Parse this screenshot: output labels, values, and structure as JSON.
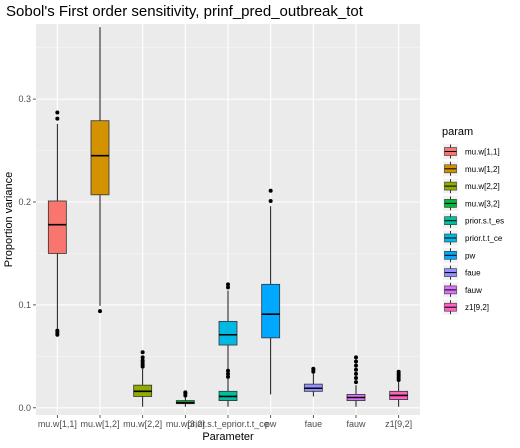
{
  "chart_data": {
    "type": "boxplot",
    "title": "Sobol's First order sensitivity,  prinf_pred_outbreak_tot",
    "xlabel": "Parameter",
    "ylabel": "Proportion variance",
    "ylim": [
      -0.007,
      0.373
    ],
    "yticks": [
      0.0,
      0.1,
      0.2,
      0.3
    ],
    "ytick_labels": [
      "0.0",
      "0.1",
      "0.2",
      "0.3"
    ],
    "grid": true,
    "legend_title": "param",
    "legend_position": "right",
    "categories": [
      "mu.w[1,1]",
      "mu.w[1,2]",
      "mu.w[2,2]",
      "mu.w[3,2]",
      "prior.s.t_eprior.t.t_ce",
      "pw",
      "faue",
      "fauw",
      "z1[9,2]"
    ],
    "series": [
      {
        "name": "mu.w[1,1]",
        "x_label": "mu.w[1,1]",
        "x_index": 0,
        "color": "#F8766D",
        "whisker_low": 0.077,
        "q1": 0.15,
        "median": 0.178,
        "q3": 0.201,
        "whisker_high": 0.276,
        "outliers": [
          0.071,
          0.073,
          0.075,
          0.281,
          0.287
        ]
      },
      {
        "name": "mu.w[1,2]",
        "x_label": "mu.w[1,2]",
        "x_index": 1,
        "color": "#D39200",
        "whisker_low": 0.099,
        "q1": 0.207,
        "median": 0.245,
        "q3": 0.279,
        "whisker_high": 0.37,
        "outliers": [
          0.094
        ]
      },
      {
        "name": "mu.w[2,2]",
        "x_label": "mu.w[2,2]",
        "x_index": 2,
        "color": "#93AA00",
        "whisker_low": 0.001,
        "q1": 0.011,
        "median": 0.016,
        "q3": 0.022,
        "whisker_high": 0.038,
        "outliers": [
          0.04,
          0.042,
          0.044,
          0.046,
          0.049,
          0.054
        ]
      },
      {
        "name": "mu.w[3,2]",
        "x_label": "mu.w[3,2]",
        "x_index": 3,
        "color": "#00BA38",
        "whisker_low": 0.001,
        "q1": 0.004,
        "median": 0.005,
        "q3": 0.007,
        "whisker_high": 0.011,
        "outliers": [
          0.012,
          0.014,
          0.015
        ]
      },
      {
        "name": "prior.s.t_es",
        "x_label": "prior.s.t_e",
        "x_index": 4,
        "color": "#00C19F",
        "whisker_low": 0.001,
        "q1": 0.007,
        "median": 0.011,
        "q3": 0.016,
        "whisker_high": 0.028,
        "outliers": [
          0.03,
          0.033,
          0.036
        ]
      },
      {
        "name": "prior.t.t_ce",
        "x_label": "prior.t.t_ce",
        "x_index": 4,
        "color": "#00B9E3",
        "whisker_low": 0.035,
        "q1": 0.061,
        "median": 0.071,
        "q3": 0.084,
        "whisker_high": 0.114,
        "outliers": [
          0.117,
          0.12
        ]
      },
      {
        "name": "pw",
        "x_label": "pw",
        "x_index": 5,
        "color": "#00A9FF",
        "whisker_low": 0.013,
        "q1": 0.068,
        "median": 0.091,
        "q3": 0.12,
        "whisker_high": 0.196,
        "outliers": [
          0.201,
          0.211
        ]
      },
      {
        "name": "faue",
        "x_label": "faue",
        "x_index": 6,
        "color": "#9590FF",
        "whisker_low": 0.011,
        "q1": 0.016,
        "median": 0.019,
        "q3": 0.023,
        "whisker_high": 0.033,
        "outliers": [
          0.035,
          0.037,
          0.038
        ]
      },
      {
        "name": "fauw",
        "x_label": "fauw",
        "x_index": 7,
        "color": "#DB72FB",
        "whisker_low": 0.001,
        "q1": 0.007,
        "median": 0.01,
        "q3": 0.013,
        "whisker_high": 0.022,
        "outliers": [
          0.025,
          0.029,
          0.033,
          0.037,
          0.041,
          0.045,
          0.049
        ]
      },
      {
        "name": "z1[9,2]",
        "x_label": "z1[9,2]",
        "x_index": 8,
        "color": "#FF61C3",
        "whisker_low": 0.001,
        "q1": 0.008,
        "median": 0.012,
        "q3": 0.016,
        "whisker_high": 0.025,
        "outliers": [
          0.027,
          0.029,
          0.031,
          0.033,
          0.035
        ]
      }
    ]
  }
}
